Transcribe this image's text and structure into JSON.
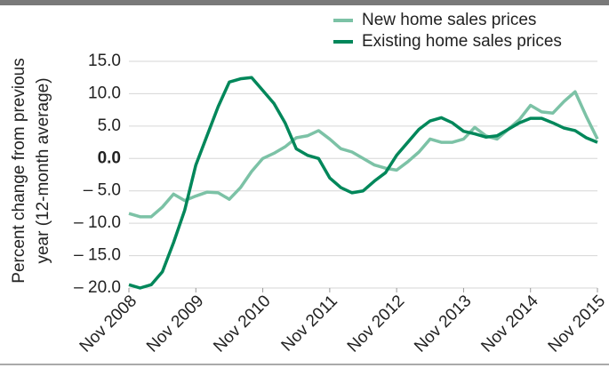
{
  "chart_data": {
    "type": "line",
    "y_label": [
      "Percent change from previous",
      "year (12-month average)"
    ],
    "x": [
      "2008-11",
      "2009-01",
      "2009-03",
      "2009-05",
      "2009-07",
      "2009-09",
      "2009-11",
      "2010-01",
      "2010-03",
      "2010-05",
      "2010-07",
      "2010-09",
      "2010-11",
      "2011-01",
      "2011-03",
      "2011-05",
      "2011-07",
      "2011-09",
      "2011-11",
      "2012-01",
      "2012-03",
      "2012-05",
      "2012-07",
      "2012-09",
      "2012-11",
      "2013-01",
      "2013-03",
      "2013-05",
      "2013-07",
      "2013-09",
      "2013-11",
      "2014-01",
      "2014-03",
      "2014-05",
      "2014-07",
      "2014-09",
      "2014-11",
      "2015-01",
      "2015-03",
      "2015-05",
      "2015-07",
      "2015-09",
      "2015-11"
    ],
    "series": [
      {
        "name": "New home sales prices",
        "color": "#7cc2a6",
        "values": [
          -8.5,
          -9,
          -9,
          -7.5,
          -5.5,
          -6.5,
          -5.8,
          -5.2,
          -5.3,
          -6.3,
          -4.5,
          -2,
          0,
          0.8,
          1.8,
          3.2,
          3.5,
          4.3,
          3,
          1.5,
          1,
          0,
          -1,
          -1.5,
          -1.8,
          -0.5,
          1,
          3,
          2.5,
          2.5,
          3,
          4.8,
          3.5,
          3,
          4.5,
          6,
          8.2,
          7.2,
          7,
          8.8,
          10.3,
          6.5,
          3
        ]
      },
      {
        "name": "Existing home sales prices",
        "color": "#00875a",
        "values": [
          -19.5,
          -20,
          -19.5,
          -17.5,
          -13,
          -8,
          -1,
          3.5,
          8,
          11.8,
          12.3,
          12.5,
          10.5,
          8.5,
          5.5,
          1.5,
          0.5,
          0,
          -3,
          -4.5,
          -5.3,
          -5,
          -3.5,
          -2.2,
          0.5,
          2.5,
          4.5,
          5.8,
          6.3,
          5.5,
          4.2,
          3.8,
          3.3,
          3.5,
          4.5,
          5.5,
          6.2,
          6.2,
          5.5,
          4.7,
          4.3,
          3.2,
          2.5
        ]
      }
    ],
    "xlim": [
      "2008-11",
      "2015-11"
    ],
    "xticks": [
      {
        "value": "2008-11",
        "label": "Nov 2008"
      },
      {
        "value": "2009-11",
        "label": "Nov 2009"
      },
      {
        "value": "2010-11",
        "label": "Nov 2010"
      },
      {
        "value": "2011-11",
        "label": "Nov 2011"
      },
      {
        "value": "2012-11",
        "label": "Nov 2012"
      },
      {
        "value": "2013-11",
        "label": "Nov 2013"
      },
      {
        "value": "2014-11",
        "label": "Nov 2014"
      },
      {
        "value": "2015-11",
        "label": "Nov 2015"
      }
    ],
    "ylim": [
      -20,
      15
    ],
    "yticks": [
      {
        "value": 15,
        "label": "15.0"
      },
      {
        "value": 10,
        "label": "10.0"
      },
      {
        "value": 5,
        "label": "5.0"
      },
      {
        "value": 0,
        "label": "0.0"
      },
      {
        "value": -5,
        "label": "– 5.0"
      },
      {
        "value": -10,
        "label": "– 10.0"
      },
      {
        "value": -15,
        "label": "– 15.0"
      },
      {
        "value": -20,
        "label": "– 20.0"
      }
    ],
    "grid": true,
    "legend": "top-right"
  }
}
